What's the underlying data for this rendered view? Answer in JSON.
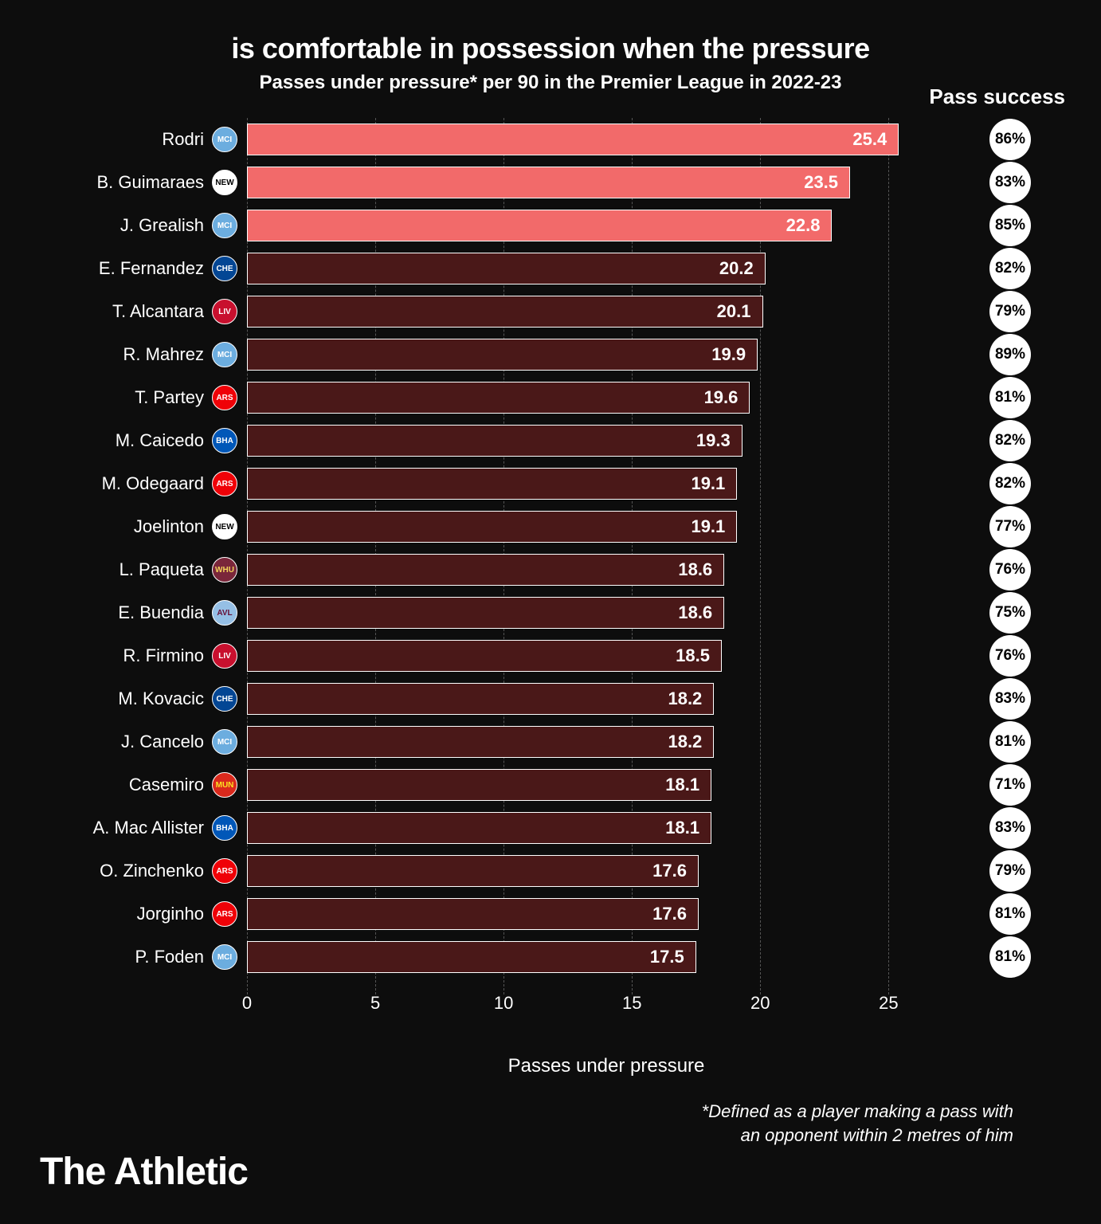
{
  "title": "is comfortable in possession when the pressure",
  "subtitle": "Passes under pressure* per 90 in the Premier League in 2022-23",
  "success_header": "Pass success",
  "x_label": "Passes under pressure",
  "footnote_line1": "*Defined as a player making a pass with",
  "footnote_line2": "an opponent within 2 metres of him",
  "brand": "The Athletic",
  "chart": {
    "type": "bar",
    "xlim": [
      0,
      28
    ],
    "xticks": [
      0,
      5,
      10,
      15,
      20,
      25
    ],
    "bar_border": "#ffffff",
    "grid_color": "#555555",
    "background": "#0d0d0d",
    "text_color": "#ffffff",
    "highlight_color": "#f26a6a",
    "normal_color": "#4a1818",
    "success_bg": "#ffffff",
    "success_fg": "#000000",
    "label_fontsize": 22,
    "value_fontsize": 22,
    "tick_fontsize": 22,
    "players": [
      {
        "name": "Rodri",
        "club": "MCI",
        "club_bg": "#6caddf",
        "club_fg": "#ffffff",
        "value": 25.4,
        "success": "86%",
        "highlight": true
      },
      {
        "name": "B. Guimaraes",
        "club": "NEW",
        "club_bg": "#ffffff",
        "club_fg": "#000000",
        "value": 23.5,
        "success": "83%",
        "highlight": true
      },
      {
        "name": "J. Grealish",
        "club": "MCI",
        "club_bg": "#6caddf",
        "club_fg": "#ffffff",
        "value": 22.8,
        "success": "85%",
        "highlight": true
      },
      {
        "name": "E. Fernandez",
        "club": "CHE",
        "club_bg": "#034694",
        "club_fg": "#ffffff",
        "value": 20.2,
        "success": "82%",
        "highlight": false
      },
      {
        "name": "T. Alcantara",
        "club": "LIV",
        "club_bg": "#c8102e",
        "club_fg": "#ffffff",
        "value": 20.1,
        "success": "79%",
        "highlight": false
      },
      {
        "name": "R. Mahrez",
        "club": "MCI",
        "club_bg": "#6caddf",
        "club_fg": "#ffffff",
        "value": 19.9,
        "success": "89%",
        "highlight": false
      },
      {
        "name": "T. Partey",
        "club": "ARS",
        "club_bg": "#ef0107",
        "club_fg": "#ffffff",
        "value": 19.6,
        "success": "81%",
        "highlight": false
      },
      {
        "name": "M. Caicedo",
        "club": "BHA",
        "club_bg": "#0057b8",
        "club_fg": "#ffffff",
        "value": 19.3,
        "success": "82%",
        "highlight": false
      },
      {
        "name": "M. Odegaard",
        "club": "ARS",
        "club_bg": "#ef0107",
        "club_fg": "#ffffff",
        "value": 19.1,
        "success": "82%",
        "highlight": false
      },
      {
        "name": "Joelinton",
        "club": "NEW",
        "club_bg": "#ffffff",
        "club_fg": "#000000",
        "value": 19.1,
        "success": "77%",
        "highlight": false
      },
      {
        "name": "L. Paqueta",
        "club": "WHU",
        "club_bg": "#7a263a",
        "club_fg": "#f3d459",
        "value": 18.6,
        "success": "76%",
        "highlight": false
      },
      {
        "name": "E. Buendia",
        "club": "AVL",
        "club_bg": "#95bfe5",
        "club_fg": "#670e36",
        "value": 18.6,
        "success": "75%",
        "highlight": false
      },
      {
        "name": "R. Firmino",
        "club": "LIV",
        "club_bg": "#c8102e",
        "club_fg": "#ffffff",
        "value": 18.5,
        "success": "76%",
        "highlight": false
      },
      {
        "name": "M. Kovacic",
        "club": "CHE",
        "club_bg": "#034694",
        "club_fg": "#ffffff",
        "value": 18.2,
        "success": "83%",
        "highlight": false
      },
      {
        "name": "J. Cancelo",
        "club": "MCI",
        "club_bg": "#6caddf",
        "club_fg": "#ffffff",
        "value": 18.2,
        "success": "81%",
        "highlight": false
      },
      {
        "name": "Casemiro",
        "club": "MUN",
        "club_bg": "#da291c",
        "club_fg": "#fbe122",
        "value": 18.1,
        "success": "71%",
        "highlight": false
      },
      {
        "name": "A. Mac Allister",
        "club": "BHA",
        "club_bg": "#0057b8",
        "club_fg": "#ffffff",
        "value": 18.1,
        "success": "83%",
        "highlight": false
      },
      {
        "name": "O. Zinchenko",
        "club": "ARS",
        "club_bg": "#ef0107",
        "club_fg": "#ffffff",
        "value": 17.6,
        "success": "79%",
        "highlight": false
      },
      {
        "name": "Jorginho",
        "club": "ARS",
        "club_bg": "#ef0107",
        "club_fg": "#ffffff",
        "value": 17.6,
        "success": "81%",
        "highlight": false
      },
      {
        "name": "P. Foden",
        "club": "MCI",
        "club_bg": "#6caddf",
        "club_fg": "#ffffff",
        "value": 17.5,
        "success": "81%",
        "highlight": false
      }
    ]
  }
}
